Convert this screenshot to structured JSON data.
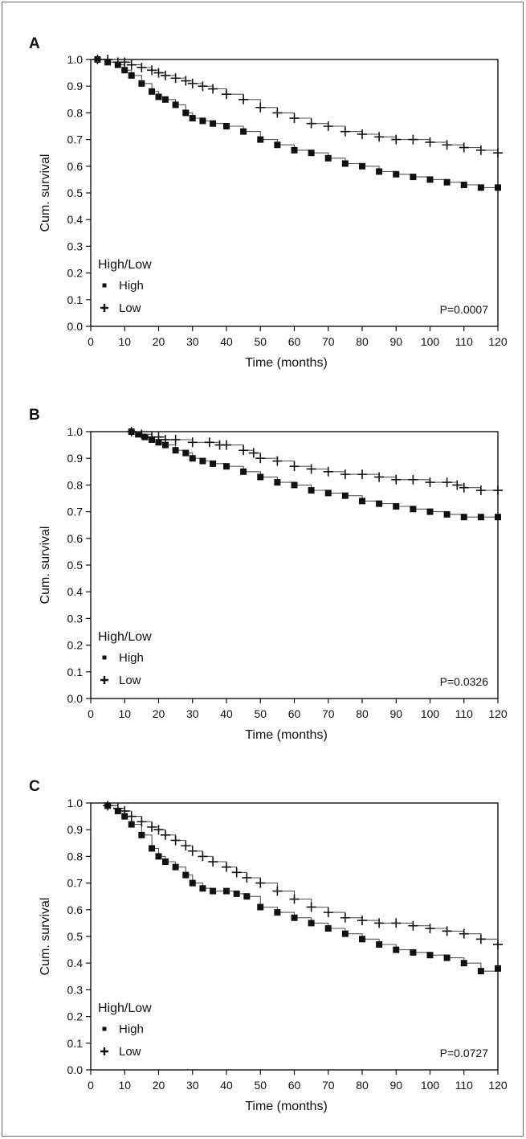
{
  "chart_data": [
    {
      "type": "line",
      "panel": "A",
      "xlabel": "Time (months)",
      "ylabel": "Cum. survival",
      "xlim": [
        0,
        120
      ],
      "ylim": [
        0,
        1
      ],
      "xticks": [
        "0",
        "10",
        "20",
        "30",
        "40",
        "50",
        "60",
        "70",
        "80",
        "90",
        "100",
        "110",
        "120"
      ],
      "yticks": [
        "0.0",
        "0.1",
        "0.2",
        "0.3",
        "0.4",
        "0.5",
        "0.6",
        "0.7",
        "0.8",
        "0.9",
        "1.0"
      ],
      "legend": {
        "title": "High/Low",
        "placement": "lower-left"
      },
      "annotation": "P=0.0007",
      "series": [
        {
          "name": "High",
          "marker": "square",
          "x": [
            2,
            5,
            8,
            10,
            12,
            15,
            18,
            20,
            22,
            25,
            28,
            30,
            33,
            36,
            40,
            45,
            50,
            55,
            60,
            65,
            70,
            75,
            80,
            85,
            90,
            95,
            100,
            105,
            110,
            115,
            120
          ],
          "y": [
            1.0,
            0.99,
            0.98,
            0.96,
            0.94,
            0.91,
            0.88,
            0.86,
            0.85,
            0.83,
            0.8,
            0.78,
            0.77,
            0.76,
            0.75,
            0.73,
            0.7,
            0.68,
            0.66,
            0.65,
            0.63,
            0.61,
            0.6,
            0.58,
            0.57,
            0.56,
            0.55,
            0.54,
            0.53,
            0.52,
            0.52
          ]
        },
        {
          "name": "Low",
          "marker": "plus",
          "x": [
            2,
            5,
            8,
            10,
            12,
            15,
            18,
            20,
            22,
            25,
            28,
            30,
            33,
            36,
            40,
            45,
            50,
            55,
            60,
            65,
            70,
            75,
            80,
            85,
            90,
            95,
            100,
            105,
            110,
            115,
            120
          ],
          "y": [
            1.0,
            1.0,
            0.99,
            0.99,
            0.98,
            0.97,
            0.96,
            0.95,
            0.94,
            0.93,
            0.92,
            0.91,
            0.9,
            0.89,
            0.87,
            0.85,
            0.82,
            0.8,
            0.78,
            0.76,
            0.75,
            0.73,
            0.72,
            0.71,
            0.7,
            0.7,
            0.69,
            0.68,
            0.67,
            0.66,
            0.65
          ]
        }
      ]
    },
    {
      "type": "line",
      "panel": "B",
      "xlabel": "Time (months)",
      "ylabel": "Cum. survival",
      "xlim": [
        0,
        120
      ],
      "ylim": [
        0,
        1
      ],
      "xticks": [
        "0",
        "10",
        "20",
        "30",
        "40",
        "50",
        "60",
        "70",
        "80",
        "90",
        "100",
        "110",
        "120"
      ],
      "yticks": [
        "0.0",
        "0.1",
        "0.2",
        "0.3",
        "0.4",
        "0.5",
        "0.6",
        "0.7",
        "0.8",
        "0.9",
        "1.0"
      ],
      "legend": {
        "title": "High/Low",
        "placement": "lower-left"
      },
      "annotation": "P=0.0326",
      "series": [
        {
          "name": "High",
          "marker": "square",
          "x": [
            12,
            14,
            16,
            18,
            20,
            22,
            25,
            28,
            30,
            33,
            36,
            40,
            45,
            50,
            55,
            60,
            65,
            70,
            75,
            80,
            85,
            90,
            95,
            100,
            105,
            110,
            115,
            120
          ],
          "y": [
            1.0,
            0.99,
            0.98,
            0.97,
            0.96,
            0.95,
            0.93,
            0.92,
            0.9,
            0.89,
            0.88,
            0.87,
            0.85,
            0.83,
            0.81,
            0.8,
            0.78,
            0.77,
            0.76,
            0.74,
            0.73,
            0.72,
            0.71,
            0.7,
            0.69,
            0.68,
            0.68,
            0.68
          ]
        },
        {
          "name": "Low",
          "marker": "plus",
          "x": [
            12,
            15,
            18,
            20,
            22,
            25,
            30,
            35,
            38,
            40,
            45,
            48,
            50,
            55,
            60,
            65,
            70,
            75,
            80,
            85,
            90,
            95,
            100,
            105,
            108,
            110,
            115,
            120
          ],
          "y": [
            1.0,
            0.99,
            0.98,
            0.98,
            0.97,
            0.97,
            0.96,
            0.96,
            0.95,
            0.95,
            0.93,
            0.92,
            0.9,
            0.89,
            0.87,
            0.86,
            0.85,
            0.84,
            0.84,
            0.83,
            0.82,
            0.82,
            0.81,
            0.81,
            0.8,
            0.79,
            0.78,
            0.78
          ]
        }
      ]
    },
    {
      "type": "line",
      "panel": "C",
      "xlabel": "Time (months)",
      "ylabel": "Cum. survival",
      "xlim": [
        0,
        120
      ],
      "ylim": [
        0,
        1
      ],
      "xticks": [
        "0",
        "10",
        "20",
        "30",
        "40",
        "50",
        "60",
        "70",
        "80",
        "90",
        "100",
        "110",
        "120"
      ],
      "yticks": [
        "0.0",
        "0.1",
        "0.2",
        "0.3",
        "0.4",
        "0.5",
        "0.6",
        "0.7",
        "0.8",
        "0.9",
        "1.0"
      ],
      "legend": {
        "title": "High/Low",
        "placement": "lower-left"
      },
      "annotation": "P=0.0727",
      "series": [
        {
          "name": "High",
          "marker": "square",
          "x": [
            5,
            8,
            10,
            12,
            15,
            18,
            20,
            22,
            25,
            28,
            30,
            33,
            36,
            40,
            43,
            46,
            50,
            55,
            60,
            65,
            70,
            75,
            80,
            85,
            90,
            95,
            100,
            105,
            110,
            115,
            120
          ],
          "y": [
            0.99,
            0.97,
            0.95,
            0.92,
            0.88,
            0.83,
            0.8,
            0.78,
            0.76,
            0.73,
            0.7,
            0.68,
            0.67,
            0.67,
            0.66,
            0.65,
            0.61,
            0.59,
            0.57,
            0.55,
            0.53,
            0.51,
            0.49,
            0.47,
            0.45,
            0.44,
            0.43,
            0.42,
            0.4,
            0.37,
            0.38
          ]
        },
        {
          "name": "Low",
          "marker": "plus",
          "x": [
            5,
            8,
            10,
            12,
            15,
            18,
            20,
            22,
            25,
            28,
            30,
            33,
            36,
            40,
            43,
            46,
            50,
            55,
            60,
            65,
            70,
            75,
            80,
            85,
            90,
            95,
            100,
            105,
            110,
            115,
            120
          ],
          "y": [
            0.99,
            0.98,
            0.97,
            0.95,
            0.93,
            0.91,
            0.9,
            0.88,
            0.86,
            0.84,
            0.82,
            0.8,
            0.78,
            0.76,
            0.74,
            0.72,
            0.7,
            0.67,
            0.64,
            0.61,
            0.59,
            0.57,
            0.56,
            0.55,
            0.55,
            0.54,
            0.53,
            0.52,
            0.51,
            0.49,
            0.47
          ]
        }
      ]
    }
  ]
}
